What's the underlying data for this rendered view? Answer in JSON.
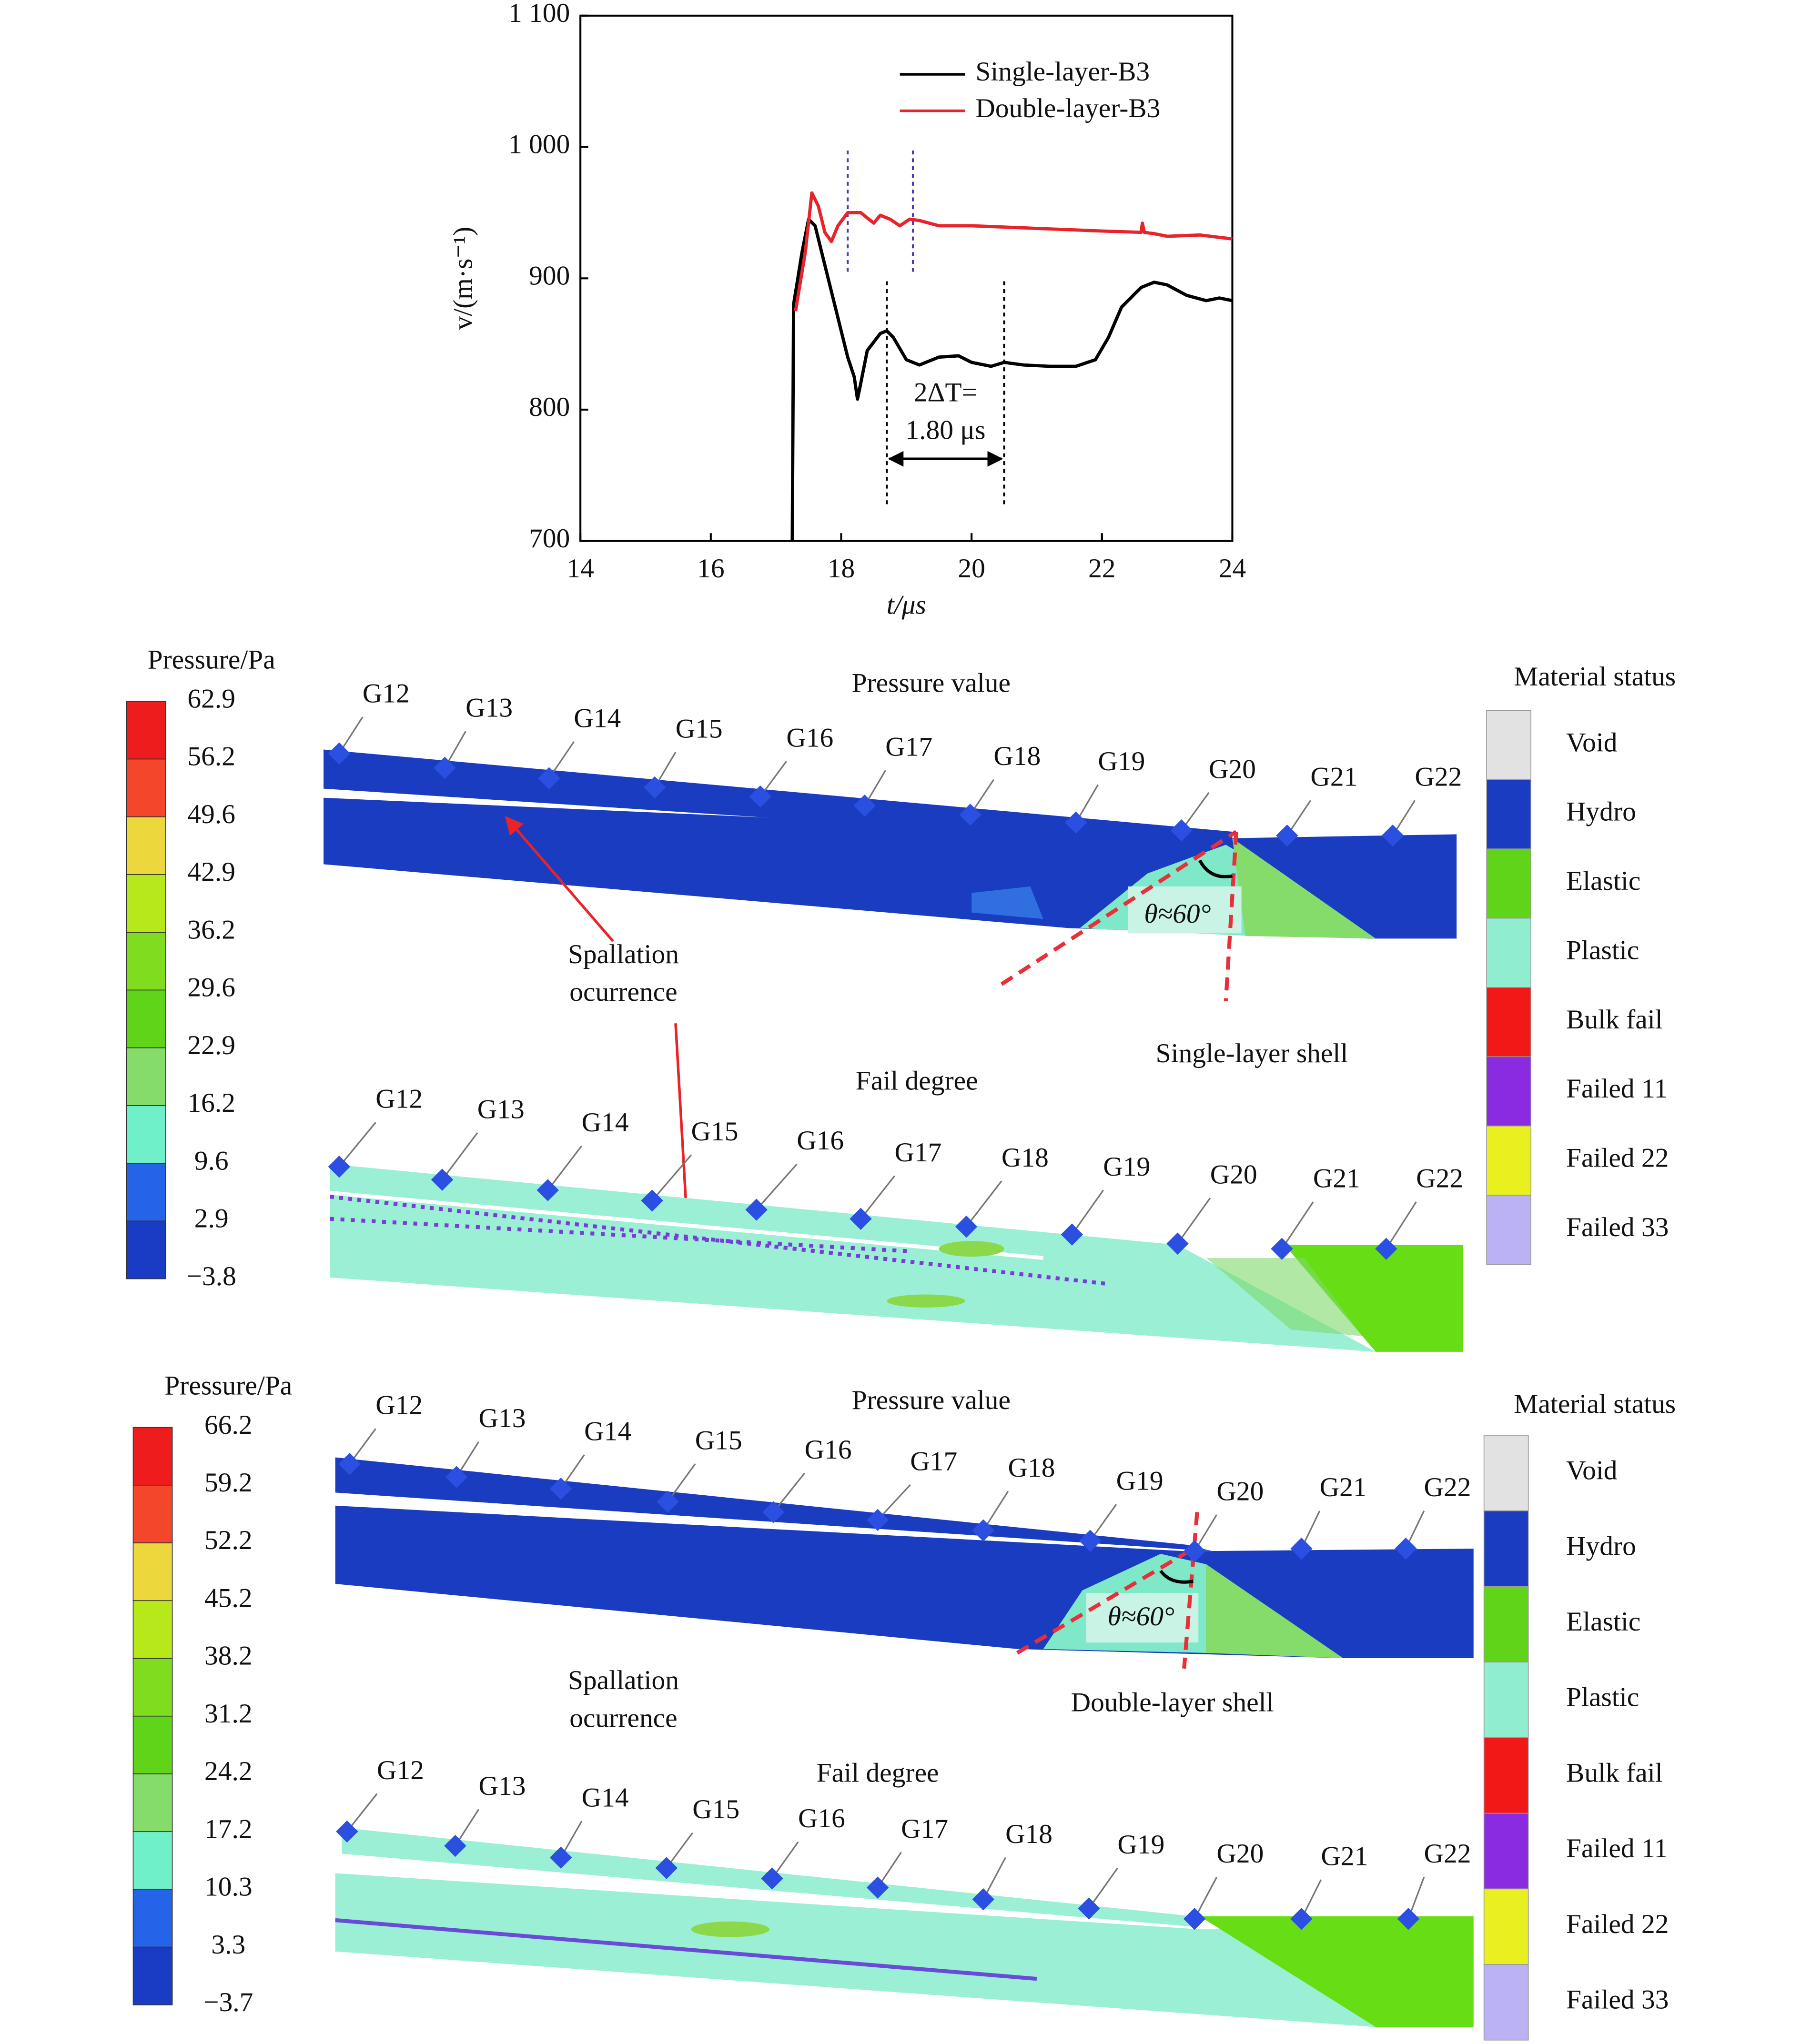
{
  "chart_data": {
    "type": "line",
    "xlabel": "t/μs",
    "ylabel": "v/(m·s⁻¹)",
    "xlim": [
      14,
      24
    ],
    "xticks": [
      14,
      16,
      18,
      20,
      22,
      24
    ],
    "ylim": [
      700,
      1100
    ],
    "yticks": [
      700,
      800,
      900,
      {
        "value": 1000,
        "label": "1 000"
      },
      {
        "value": 1100,
        "label": "1 100"
      }
    ],
    "series": [
      {
        "name": "Single-layer-B3",
        "color": "#000000",
        "x": [
          17.25,
          17.27,
          17.4,
          17.5,
          17.6,
          17.8,
          18.0,
          18.1,
          18.2,
          18.25,
          18.3,
          18.4,
          18.6,
          18.7,
          18.8,
          19.0,
          19.2,
          19.5,
          19.8,
          20.0,
          20.3,
          20.5,
          20.8,
          21.2,
          21.6,
          21.9,
          22.1,
          22.3,
          22.6,
          22.8,
          23.0,
          23.3,
          23.6,
          23.8,
          24.0
        ],
        "values": [
          700,
          880,
          920,
          945,
          940,
          900,
          860,
          840,
          825,
          808,
          820,
          845,
          858,
          860,
          855,
          838,
          834,
          840,
          841,
          836,
          833,
          836,
          834,
          833,
          833,
          838,
          855,
          878,
          893,
          897,
          895,
          887,
          883,
          885,
          883
        ]
      },
      {
        "name": "Double-layer-B3",
        "color": "#e8232a",
        "x": [
          17.3,
          17.45,
          17.55,
          17.65,
          17.75,
          17.85,
          17.95,
          18.1,
          18.3,
          18.5,
          18.6,
          18.75,
          18.9,
          19.05,
          19.2,
          19.5,
          20.0,
          21.0,
          22.0,
          22.6,
          22.62,
          22.65,
          22.8,
          23.0,
          23.5,
          24.0
        ],
        "values": [
          875,
          920,
          965,
          955,
          935,
          928,
          940,
          950,
          950,
          942,
          948,
          945,
          940,
          945,
          944,
          940,
          940,
          938,
          936,
          935,
          942,
          935,
          934,
          932,
          933,
          930
        ]
      }
    ],
    "vlines": [
      {
        "x": 18.1,
        "y_range": [
          905,
          1000
        ],
        "color": "#4b3cb0"
      },
      {
        "x": 19.1,
        "y_range": [
          905,
          1000
        ],
        "color": "#4b3cb0"
      },
      {
        "x": 18.7,
        "y_range": [
          728,
          900
        ],
        "color": "#000000"
      },
      {
        "x": 20.5,
        "y_range": [
          728,
          900
        ],
        "color": "#000000"
      }
    ],
    "annotation": {
      "text": [
        "2ΔT=",
        "1.80 μs"
      ],
      "color": "#e8232a"
    }
  },
  "gauges": [
    "G12",
    "G13",
    "G14",
    "G15",
    "G16",
    "G17",
    "G18",
    "G19",
    "G20",
    "G21",
    "G22"
  ],
  "panels": [
    {
      "shell_label": "Single-layer shell",
      "pressure_title": "Pressure value",
      "fail_title": "Fail degree",
      "annotation": [
        "Spallation",
        "ocurrence"
      ],
      "angle_label": "θ≈60°",
      "colorbar": {
        "title": "Pressure/Pa",
        "labels": [
          "62.9",
          "56.2",
          "49.6",
          "42.9",
          "36.2",
          "29.6",
          "22.9",
          "16.2",
          "9.6",
          "2.9",
          "−3.8"
        ]
      },
      "material_status": {
        "title": "Material status",
        "labels": [
          "Void",
          "Hydro",
          "Elastic",
          "Plastic",
          "Bulk fail",
          "Failed 11",
          "Failed 22",
          "Failed 33"
        ]
      }
    },
    {
      "shell_label": "Double-layer shell",
      "pressure_title": "Pressure value",
      "fail_title": "Fail degree",
      "annotation": [
        "Spallation",
        "ocurrence"
      ],
      "angle_label": "θ≈60°",
      "colorbar": {
        "title": "Pressure/Pa",
        "labels": [
          "66.2",
          "59.2",
          "52.2",
          "45.2",
          "38.2",
          "31.2",
          "24.2",
          "17.2",
          "10.3",
          "3.3",
          "−3.7"
        ]
      },
      "material_status": {
        "title": "Material status",
        "labels": [
          "Void",
          "Hydro",
          "Elastic",
          "Plastic",
          "Bulk fail",
          "Failed 11",
          "Failed 22",
          "Failed 33"
        ]
      }
    }
  ],
  "colorbar_colors": [
    "#ee1c1c",
    "#f3462b",
    "#ecd83c",
    "#b7e81a",
    "#7fdc1f",
    "#5fd418",
    "#86dc6a",
    "#6ff0c8",
    "#2563e8",
    "#1a3cc4"
  ],
  "material_colors": [
    "#e2e2e2",
    "#1a3cc0",
    "#5fd418",
    "#90edd0",
    "#f21818",
    "#8a2be2",
    "#e8f020",
    "#bab2f2"
  ]
}
